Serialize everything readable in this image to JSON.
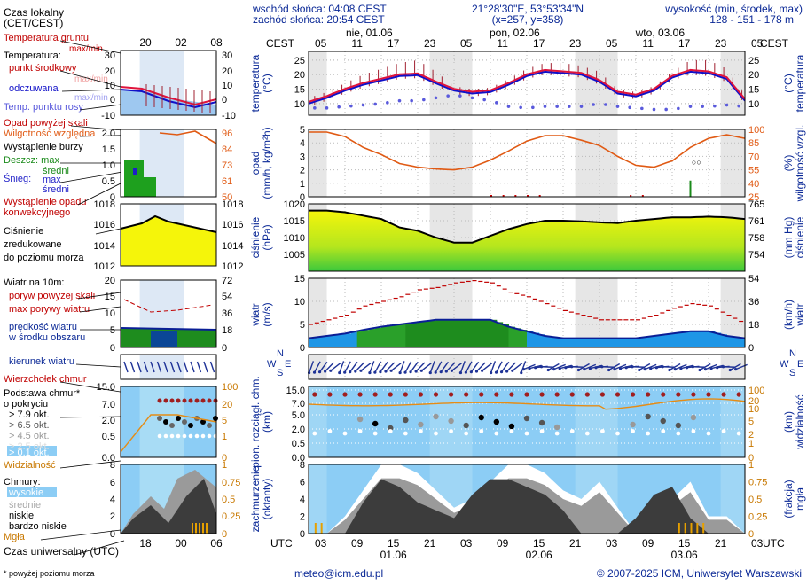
{
  "header": {
    "sunrise": "wschód słońca: 04:08 CEST",
    "sunset": "zachód słońca: 20:54 CEST",
    "coords": "21°28'30\"E, 53°53'34\"N",
    "grid": "(x=257, y=358)",
    "height_title": "wysokość (min, środek, max)",
    "height_values": "128 - 151 - 178 m"
  },
  "legend": {
    "local_time": "Czas lokalny",
    "local_time2": "(CET/CEST)",
    "ground_temp": "Temperatura gruntu",
    "maxmin": "max/min",
    "temperature": "Temperatura:",
    "mid_point": "punkt środkowy",
    "maxmin2": "max/min",
    "perceived": "odczuwana",
    "maxmin3": "max/min",
    "dew_point": "Temp. punktu rosy",
    "precip_over": "Opad powyżej skali",
    "humidity": "Wilgotność względna",
    "storm": "Wystąpienie burzy",
    "rain": "Deszcz: max",
    "rain_mid": "średni",
    "snow": "Śnieg:",
    "snow_max": "max",
    "snow_mid": "średni",
    "conv1": "Wystąpienie opadu",
    "conv2": "konwekcyjnego",
    "pressure1": "Ciśnienie",
    "pressure2": "zredukowane",
    "pressure3": "do poziomu morza",
    "wind_label": "Wiatr na 10m:",
    "gust_over": "poryw powyżej skali",
    "gust_max": "max porywy wiatru",
    "wind_speed": "prędkość wiatru",
    "wind_area": "w środku obszaru",
    "wind_dir": "kierunek wiatru",
    "cloud_top": "Wierzchołek chmur",
    "cloud_base1": "Podstawa chmur*",
    "cloud_base2": "o pokryciu",
    "okt79": "> 7.9 okt.",
    "okt65": "> 6.5 okt.",
    "okt45": "> 4.5 okt.",
    "okt25": "> 2.5 okt.",
    "okt01": "> 0.1 okt.",
    "visibility": "Widzialność",
    "clouds": "Chmury:",
    "high": "wysokie",
    "medium": "średnie",
    "low": "niskie",
    "very_low": "bardzo niskie",
    "fog": "Mgła",
    "utc_time": "Czas uniwersalny (UTC)",
    "footnote": "* powyżej poziomu morza"
  },
  "axes": {
    "cest": "CEST",
    "utc": "UTC",
    "temp_l": "temperatura",
    "temp_unit": "(°C)",
    "precip_l": "opad",
    "precip_unit": "(mm/h, kg/m²h)",
    "hum_l": "wilgotność wzgl.",
    "hum_unit": "(%)",
    "pres_l": "ciśnienie",
    "pres_unit": "(hPa)",
    "pres_r_unit": "(mm Hg)",
    "wind_l": "wiatr",
    "wind_unit": "(m/s)",
    "wind_r_unit": "(km/h)",
    "cloud_l": "pion. rozciągł. chm.",
    "cloud_unit": "(km)",
    "vis_l": "widzialność",
    "vis_unit": "(km)",
    "cc_l": "zachmurzenie",
    "cc_unit": "(oktanty)",
    "fog_l": "mgła",
    "fog_unit": "(frakcja)",
    "compass_n": "N",
    "compass_w": "W",
    "compass_s": "S",
    "compass_e": "E"
  },
  "footer": {
    "email": "meteo@icm.edu.pl",
    "copyright": "© 2007-2025 ICM, Uniwersytet Warszawski"
  },
  "colors": {
    "temp": "#e0143c",
    "dew": "#5a5adc",
    "perceived": "#1010c8",
    "humidity": "#e05a14",
    "pressure_line": "#000000",
    "wind_max": "#c00000",
    "night": "#e6e6e6",
    "sky": "#8ccdf5",
    "axis_red": "#c00000",
    "axis_blue": "#0a2896"
  },
  "chart_data": {
    "type": "line",
    "title": "Meteogram 21°28'30\"E 53°53'34\"N",
    "days": [
      "nie, 01.06",
      "pon, 02.06",
      "wto, 03.06"
    ],
    "utc_days": [
      "01.06",
      "02.06",
      "03.06"
    ],
    "cest_ticks": [
      "05",
      "11",
      "17",
      "23",
      "05",
      "11",
      "17",
      "23",
      "05",
      "11",
      "17",
      "23",
      "05"
    ],
    "utc_ticks": [
      "03",
      "09",
      "15",
      "21",
      "03",
      "09",
      "15",
      "21",
      "03",
      "09",
      "15",
      "21",
      "03"
    ],
    "mini_top_ticks": [
      "20",
      "02",
      "08"
    ],
    "mini_bottom_ticks": [
      "18",
      "00",
      "06"
    ],
    "temperature": {
      "ylim": [
        6,
        28
      ],
      "yticks": [
        10,
        15,
        20,
        25
      ],
      "time_h": [
        0,
        3,
        6,
        9,
        12,
        15,
        18,
        21,
        24,
        27,
        30,
        33,
        36,
        39,
        42,
        45,
        48,
        51,
        54,
        57,
        60,
        63,
        66,
        69,
        72
      ],
      "mid": [
        10,
        12,
        14.5,
        16.5,
        18,
        19.5,
        19.8,
        17,
        14.5,
        13.5,
        14,
        16.5,
        19.5,
        21,
        20.5,
        20,
        17.5,
        13.5,
        12.5,
        14.5,
        19,
        21,
        20.5,
        18.5,
        11
      ],
      "max": [
        12,
        14,
        17,
        20,
        22,
        24,
        25,
        21,
        16,
        15,
        15.5,
        18.5,
        22,
        24,
        24,
        23,
        21,
        15,
        14,
        16,
        21,
        25,
        25,
        22,
        13
      ],
      "dew": [
        8.5,
        8.5,
        9,
        9.5,
        10,
        11,
        11,
        12,
        13,
        12,
        11,
        9,
        8.5,
        9,
        9,
        9,
        10,
        9,
        8.5,
        8,
        8,
        9,
        9,
        9.5,
        9
      ]
    },
    "precipitation": {
      "ylim": [
        0,
        5
      ],
      "yticks": [
        0,
        1,
        2,
        3,
        4,
        5
      ],
      "humidity_ylim": [
        25,
        100
      ],
      "humidity_ticks": [
        25,
        40,
        55,
        70,
        85,
        100
      ],
      "humidity": [
        97,
        97,
        92,
        80,
        72,
        62,
        58,
        56,
        55,
        58,
        66,
        76,
        87,
        93,
        93,
        88,
        82,
        70,
        60,
        58,
        65,
        80,
        90,
        94,
        90
      ],
      "rain_mid": [
        0,
        0,
        0,
        0,
        0,
        0,
        0,
        0,
        0,
        0,
        0,
        0,
        0,
        0,
        0,
        0,
        0,
        0,
        0,
        0,
        0,
        0,
        0,
        0,
        0
      ],
      "rain_max": [
        0,
        0,
        0,
        0,
        0,
        0,
        0,
        0,
        0,
        0,
        0,
        0,
        0,
        0,
        0,
        0,
        0,
        0,
        0,
        0,
        0,
        1.2,
        0,
        0,
        0
      ]
    },
    "pressure": {
      "ylim": [
        1000,
        1020
      ],
      "yticks": [
        1005,
        1010,
        1015,
        1020
      ],
      "r_ticks": [
        754,
        758,
        761,
        765
      ],
      "values": [
        1018,
        1018,
        1017.5,
        1016.5,
        1015.5,
        1013,
        1012,
        1010,
        1008.5,
        1008.5,
        1010.5,
        1012.5,
        1014,
        1015,
        1015,
        1014.8,
        1014.5,
        1014.3,
        1015,
        1015.5,
        1016,
        1016,
        1016.2,
        1016,
        1015.5
      ]
    },
    "wind": {
      "ylim": [
        0,
        15
      ],
      "yticks": [
        0,
        5,
        10,
        15
      ],
      "r_ticks": [
        0,
        18,
        36,
        54
      ],
      "speed": [
        2,
        2.5,
        3,
        3.8,
        4.5,
        5,
        5.5,
        6,
        6,
        6,
        6,
        4.5,
        3.5,
        2.5,
        2,
        2,
        2,
        2,
        2,
        2.5,
        3,
        3.5,
        3.5,
        2.5,
        2
      ],
      "gust_max": [
        5,
        6,
        7,
        9,
        10,
        11,
        12.5,
        13,
        14,
        14.5,
        14,
        12,
        11,
        9.5,
        8,
        7,
        6,
        6,
        6,
        7,
        8.5,
        9.5,
        9,
        7,
        5
      ]
    },
    "clouds": {
      "ylim": [
        0,
        15
      ],
      "yticks": [
        0,
        0.5,
        2,
        5,
        7,
        15
      ],
      "vis_ticks": [
        0,
        1,
        2,
        5,
        10,
        20,
        100
      ],
      "cc_ylim": [
        0,
        8
      ],
      "cc_ticks": [
        0,
        2,
        4,
        6,
        8
      ],
      "fog_ticks": [
        0,
        0.25,
        0.5,
        0.75,
        1
      ],
      "low_cover": [
        0,
        0,
        0,
        4,
        7,
        6,
        4,
        3,
        2,
        5,
        7,
        7,
        6,
        5,
        3,
        0,
        0,
        0,
        2,
        5,
        6,
        2,
        0,
        0,
        0
      ],
      "high_cover": [
        0,
        0,
        2,
        5,
        8,
        8,
        7,
        5,
        3,
        4,
        6,
        8,
        8,
        7,
        5,
        4,
        6,
        3,
        0,
        3,
        4,
        6,
        2,
        2,
        0
      ]
    }
  }
}
